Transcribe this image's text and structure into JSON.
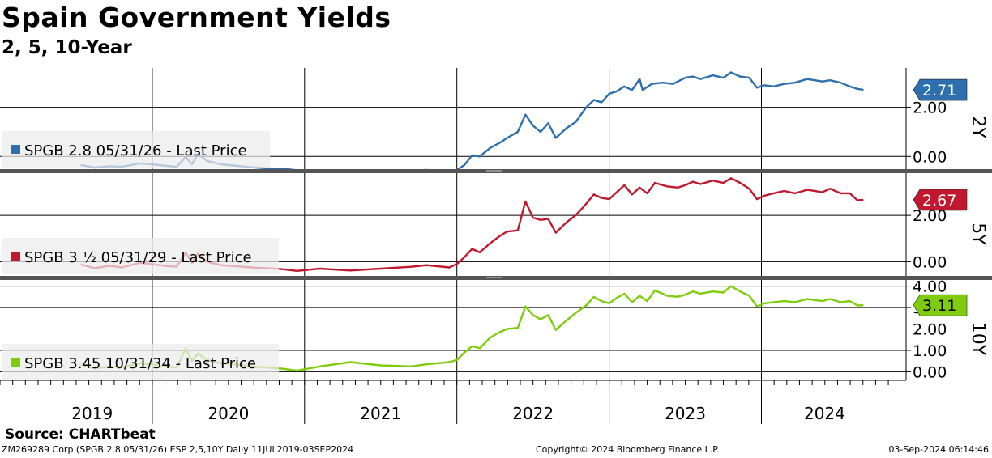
{
  "title": "Spain Government Yields",
  "subtitle": "2, 5, 10-Year",
  "source": "Source: CHARTbeat",
  "footer": {
    "left": "ZM269289 Corp (SPGB 2.8 05/31/26) ESP 2,5,10Y  Daily 11JUL2019-03SEP2024",
    "center": "Copyright© 2024 Bloomberg Finance L.P.",
    "right": "03-Sep-2024 06:14:46"
  },
  "chart_data": [
    {
      "type": "line",
      "panel_label": "2Y",
      "legend": "SPGB 2.8 05/31/26 - Last Price",
      "color": "#2e6fad",
      "last_value": "2.71",
      "ylim": [
        -0.55,
        3.6
      ],
      "yticks": [
        0.0,
        2.0
      ],
      "ytick_labels": [
        "0.00",
        "2.00"
      ],
      "points": [
        [
          2019.53,
          -0.35
        ],
        [
          2019.62,
          -0.45
        ],
        [
          2019.72,
          -0.4
        ],
        [
          2019.8,
          -0.42
        ],
        [
          2019.92,
          -0.28
        ],
        [
          2020.0,
          -0.32
        ],
        [
          2020.08,
          -0.38
        ],
        [
          2020.16,
          -0.42
        ],
        [
          2020.22,
          -0.02
        ],
        [
          2020.26,
          -0.32
        ],
        [
          2020.3,
          0.1
        ],
        [
          2020.36,
          -0.18
        ],
        [
          2020.45,
          -0.32
        ],
        [
          2020.55,
          -0.38
        ],
        [
          2020.65,
          -0.44
        ],
        [
          2020.75,
          -0.48
        ],
        [
          2020.85,
          -0.5
        ],
        [
          2020.95,
          -0.56
        ],
        [
          2021.1,
          -0.56
        ],
        [
          2021.3,
          -0.6
        ],
        [
          2021.5,
          -0.58
        ],
        [
          2021.7,
          -0.6
        ],
        [
          2021.8,
          -0.55
        ],
        [
          2021.95,
          -0.62
        ],
        [
          2022.0,
          -0.55
        ],
        [
          2022.05,
          -0.35
        ],
        [
          2022.1,
          0.05
        ],
        [
          2022.15,
          0.0
        ],
        [
          2022.22,
          0.35
        ],
        [
          2022.28,
          0.55
        ],
        [
          2022.33,
          0.75
        ],
        [
          2022.4,
          1.0
        ],
        [
          2022.45,
          1.7
        ],
        [
          2022.5,
          1.25
        ],
        [
          2022.55,
          1.0
        ],
        [
          2022.6,
          1.35
        ],
        [
          2022.65,
          0.75
        ],
        [
          2022.72,
          1.15
        ],
        [
          2022.78,
          1.4
        ],
        [
          2022.85,
          2.0
        ],
        [
          2022.9,
          2.3
        ],
        [
          2022.95,
          2.2
        ],
        [
          2023.0,
          2.55
        ],
        [
          2023.05,
          2.65
        ],
        [
          2023.1,
          2.85
        ],
        [
          2023.15,
          2.7
        ],
        [
          2023.2,
          3.15
        ],
        [
          2023.22,
          2.7
        ],
        [
          2023.28,
          2.95
        ],
        [
          2023.35,
          3.0
        ],
        [
          2023.42,
          2.95
        ],
        [
          2023.5,
          3.2
        ],
        [
          2023.55,
          3.25
        ],
        [
          2023.6,
          3.15
        ],
        [
          2023.68,
          3.3
        ],
        [
          2023.75,
          3.2
        ],
        [
          2023.8,
          3.42
        ],
        [
          2023.86,
          3.25
        ],
        [
          2023.92,
          3.2
        ],
        [
          2023.97,
          2.8
        ],
        [
          2024.02,
          2.9
        ],
        [
          2024.08,
          2.85
        ],
        [
          2024.15,
          2.95
        ],
        [
          2024.22,
          3.0
        ],
        [
          2024.3,
          3.15
        ],
        [
          2024.4,
          3.05
        ],
        [
          2024.45,
          3.1
        ],
        [
          2024.52,
          3.0
        ],
        [
          2024.58,
          2.85
        ],
        [
          2024.63,
          2.75
        ],
        [
          2024.67,
          2.71
        ]
      ]
    },
    {
      "type": "line",
      "panel_label": "5Y",
      "legend": "SPGB 3 ½ 05/31/29 - Last Price",
      "color": "#c0192f",
      "last_value": "2.67",
      "ylim": [
        -0.65,
        3.75
      ],
      "yticks": [
        0.0,
        2.0
      ],
      "ytick_labels": [
        "0.00",
        "2.00"
      ],
      "points": [
        [
          2019.53,
          -0.12
        ],
        [
          2019.62,
          -0.28
        ],
        [
          2019.72,
          -0.18
        ],
        [
          2019.8,
          -0.25
        ],
        [
          2019.92,
          -0.05
        ],
        [
          2020.0,
          -0.1
        ],
        [
          2020.08,
          -0.18
        ],
        [
          2020.16,
          -0.22
        ],
        [
          2020.22,
          0.4
        ],
        [
          2020.26,
          -0.05
        ],
        [
          2020.3,
          0.35
        ],
        [
          2020.36,
          0.0
        ],
        [
          2020.45,
          -0.15
        ],
        [
          2020.55,
          -0.2
        ],
        [
          2020.65,
          -0.25
        ],
        [
          2020.75,
          -0.28
        ],
        [
          2020.85,
          -0.32
        ],
        [
          2020.95,
          -0.4
        ],
        [
          2021.1,
          -0.3
        ],
        [
          2021.3,
          -0.38
        ],
        [
          2021.5,
          -0.3
        ],
        [
          2021.7,
          -0.22
        ],
        [
          2021.8,
          -0.15
        ],
        [
          2021.95,
          -0.25
        ],
        [
          2022.0,
          -0.1
        ],
        [
          2022.05,
          0.2
        ],
        [
          2022.1,
          0.55
        ],
        [
          2022.15,
          0.4
        ],
        [
          2022.22,
          0.8
        ],
        [
          2022.28,
          1.1
        ],
        [
          2022.33,
          1.3
        ],
        [
          2022.4,
          1.35
        ],
        [
          2022.45,
          2.6
        ],
        [
          2022.5,
          1.9
        ],
        [
          2022.55,
          1.8
        ],
        [
          2022.6,
          1.85
        ],
        [
          2022.65,
          1.25
        ],
        [
          2022.72,
          1.7
        ],
        [
          2022.78,
          2.0
        ],
        [
          2022.85,
          2.5
        ],
        [
          2022.9,
          2.9
        ],
        [
          2022.95,
          2.75
        ],
        [
          2023.0,
          2.7
        ],
        [
          2023.05,
          3.0
        ],
        [
          2023.1,
          3.3
        ],
        [
          2023.15,
          2.9
        ],
        [
          2023.2,
          3.2
        ],
        [
          2023.25,
          2.95
        ],
        [
          2023.3,
          3.4
        ],
        [
          2023.38,
          3.25
        ],
        [
          2023.45,
          3.2
        ],
        [
          2023.5,
          3.3
        ],
        [
          2023.55,
          3.45
        ],
        [
          2023.6,
          3.35
        ],
        [
          2023.68,
          3.5
        ],
        [
          2023.75,
          3.4
        ],
        [
          2023.8,
          3.6
        ],
        [
          2023.86,
          3.4
        ],
        [
          2023.92,
          3.15
        ],
        [
          2023.97,
          2.7
        ],
        [
          2024.02,
          2.85
        ],
        [
          2024.08,
          2.95
        ],
        [
          2024.15,
          3.05
        ],
        [
          2024.22,
          2.95
        ],
        [
          2024.3,
          3.1
        ],
        [
          2024.4,
          3.0
        ],
        [
          2024.45,
          3.15
        ],
        [
          2024.52,
          2.95
        ],
        [
          2024.58,
          2.95
        ],
        [
          2024.63,
          2.65
        ],
        [
          2024.67,
          2.67
        ]
      ]
    },
    {
      "type": "line",
      "panel_label": "10Y",
      "legend": "SPGB 3.45 10/31/34 - Last Price",
      "color": "#7fcc0f",
      "last_value": "3.11",
      "ylim": [
        -0.4,
        4.25
      ],
      "yticks": [
        0.0,
        1.0,
        2.0,
        3.0,
        4.0
      ],
      "ytick_labels": [
        "0.00",
        "1.00",
        "2.00",
        "3.00",
        "4.00"
      ],
      "points": [
        [
          2019.53,
          0.35
        ],
        [
          2019.62,
          0.15
        ],
        [
          2019.72,
          0.25
        ],
        [
          2019.8,
          0.2
        ],
        [
          2019.92,
          0.4
        ],
        [
          2020.0,
          0.35
        ],
        [
          2020.08,
          0.25
        ],
        [
          2020.16,
          0.2
        ],
        [
          2020.22,
          1.1
        ],
        [
          2020.26,
          0.5
        ],
        [
          2020.3,
          0.85
        ],
        [
          2020.36,
          0.55
        ],
        [
          2020.45,
          0.4
        ],
        [
          2020.55,
          0.35
        ],
        [
          2020.65,
          0.25
        ],
        [
          2020.75,
          0.2
        ],
        [
          2020.85,
          0.15
        ],
        [
          2020.95,
          0.05
        ],
        [
          2021.1,
          0.25
        ],
        [
          2021.3,
          0.45
        ],
        [
          2021.5,
          0.3
        ],
        [
          2021.7,
          0.25
        ],
        [
          2021.8,
          0.35
        ],
        [
          2021.95,
          0.45
        ],
        [
          2022.0,
          0.55
        ],
        [
          2022.05,
          0.9
        ],
        [
          2022.1,
          1.2
        ],
        [
          2022.15,
          1.1
        ],
        [
          2022.22,
          1.6
        ],
        [
          2022.28,
          1.85
        ],
        [
          2022.33,
          2.0
        ],
        [
          2022.4,
          2.05
        ],
        [
          2022.45,
          3.05
        ],
        [
          2022.5,
          2.65
        ],
        [
          2022.55,
          2.45
        ],
        [
          2022.6,
          2.65
        ],
        [
          2022.65,
          1.95
        ],
        [
          2022.72,
          2.4
        ],
        [
          2022.78,
          2.75
        ],
        [
          2022.85,
          3.1
        ],
        [
          2022.9,
          3.5
        ],
        [
          2022.95,
          3.3
        ],
        [
          2023.0,
          3.2
        ],
        [
          2023.05,
          3.45
        ],
        [
          2023.1,
          3.65
        ],
        [
          2023.15,
          3.25
        ],
        [
          2023.2,
          3.55
        ],
        [
          2023.25,
          3.3
        ],
        [
          2023.3,
          3.8
        ],
        [
          2023.38,
          3.55
        ],
        [
          2023.45,
          3.5
        ],
        [
          2023.5,
          3.6
        ],
        [
          2023.55,
          3.75
        ],
        [
          2023.6,
          3.65
        ],
        [
          2023.68,
          3.75
        ],
        [
          2023.75,
          3.7
        ],
        [
          2023.8,
          4.0
        ],
        [
          2023.86,
          3.75
        ],
        [
          2023.92,
          3.55
        ],
        [
          2023.97,
          3.05
        ],
        [
          2024.02,
          3.2
        ],
        [
          2024.08,
          3.25
        ],
        [
          2024.15,
          3.3
        ],
        [
          2024.22,
          3.25
        ],
        [
          2024.3,
          3.4
        ],
        [
          2024.4,
          3.3
        ],
        [
          2024.45,
          3.4
        ],
        [
          2024.52,
          3.25
        ],
        [
          2024.58,
          3.3
        ],
        [
          2024.63,
          3.1
        ],
        [
          2024.67,
          3.11
        ]
      ]
    }
  ],
  "x_axis": {
    "range": [
      2019.0,
      2024.95
    ],
    "year_labels": [
      "2019",
      "2020",
      "2021",
      "2022",
      "2023",
      "2024"
    ],
    "year_boundaries": [
      2020.0,
      2021.0,
      2022.0,
      2023.0,
      2024.0
    ],
    "grid": true
  }
}
